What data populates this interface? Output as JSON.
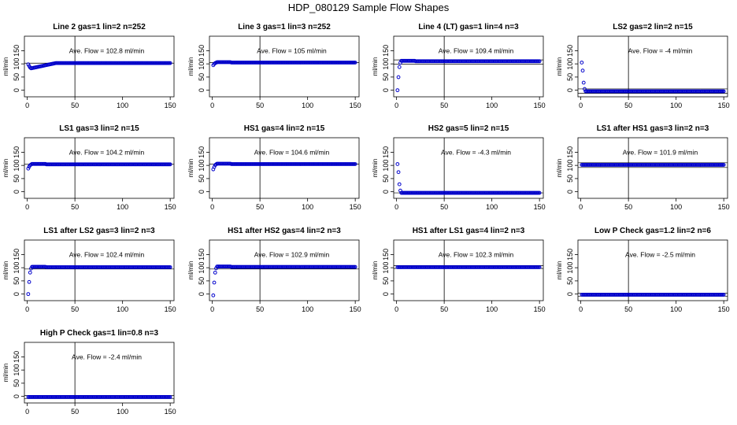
{
  "figure": {
    "title": "HDP_080129  Sample Flow Shapes"
  },
  "chart_data": [
    {
      "type": "scatter",
      "title": "Line 2 gas=1 lin=2 n=252",
      "ylabel": "ml/min",
      "xlabel": "",
      "xlim": [
        -3,
        154
      ],
      "ylim": [
        -25,
        205
      ],
      "xticks": [
        0,
        50,
        100,
        150
      ],
      "yticks": [
        0,
        50,
        100,
        150
      ],
      "annotation": "Ave. Flow =  102.8  ml/min",
      "ave_flow": 102.8,
      "vline_x": 50,
      "hlines": [
        102.8
      ],
      "shape": "dip",
      "start": 98,
      "steady": 103
    },
    {
      "type": "scatter",
      "title": "Line 3 gas=1 lin=3 n=252",
      "ylabel": "ml/min",
      "xlabel": "",
      "xlim": [
        -3,
        154
      ],
      "ylim": [
        -25,
        205
      ],
      "xticks": [
        0,
        50,
        100,
        150
      ],
      "yticks": [
        0,
        50,
        100,
        150
      ],
      "annotation": "Ave. Flow =  105  ml/min",
      "ave_flow": 105,
      "vline_x": 50,
      "hlines": [
        105
      ],
      "shape": "rise",
      "start": 95,
      "steady": 105
    },
    {
      "type": "scatter",
      "title": "Line 4 (LT) gas=1 lin=4 n=3",
      "ylabel": "ml/min",
      "xlabel": "",
      "xlim": [
        -3,
        154
      ],
      "ylim": [
        -25,
        205
      ],
      "xticks": [
        0,
        50,
        100,
        150
      ],
      "yticks": [
        0,
        50,
        100,
        150
      ],
      "annotation": "Ave. Flow =  109.4  ml/min",
      "ave_flow": 109.4,
      "vline_x": 50,
      "hlines": [
        99,
        115
      ],
      "shape": "rise",
      "start": 0,
      "steady": 110
    },
    {
      "type": "scatter",
      "title": "LS2 gas=2 lin=2 n=15",
      "ylabel": "ml/min",
      "xlabel": "",
      "xlim": [
        -3,
        154
      ],
      "ylim": [
        -25,
        205
      ],
      "xticks": [
        0,
        50,
        100,
        150
      ],
      "yticks": [
        0,
        50,
        100,
        150
      ],
      "annotation": "Ave. Flow =  -4  ml/min",
      "ave_flow": -4,
      "vline_x": 50,
      "hlines": [
        5,
        -12
      ],
      "shape": "decay",
      "start": 105,
      "steady": -4
    },
    {
      "type": "scatter",
      "title": "LS1 gas=3 lin=2 n=15",
      "ylabel": "ml/min",
      "xlabel": "",
      "xlim": [
        -3,
        154
      ],
      "ylim": [
        -25,
        205
      ],
      "xticks": [
        0,
        50,
        100,
        150
      ],
      "yticks": [
        0,
        50,
        100,
        150
      ],
      "annotation": "Ave. Flow =  104.2  ml/min",
      "ave_flow": 104.2,
      "vline_x": 50,
      "hlines": [
        104.2
      ],
      "shape": "rise",
      "start": 88,
      "steady": 104
    },
    {
      "type": "scatter",
      "title": "HS1 gas=4 lin=2 n=15",
      "ylabel": "ml/min",
      "xlabel": "",
      "xlim": [
        -3,
        154
      ],
      "ylim": [
        -25,
        205
      ],
      "xticks": [
        0,
        50,
        100,
        150
      ],
      "yticks": [
        0,
        50,
        100,
        150
      ],
      "annotation": "Ave. Flow =  104.6  ml/min",
      "ave_flow": 104.6,
      "vline_x": 50,
      "hlines": [
        104.6
      ],
      "shape": "rise",
      "start": 85,
      "steady": 105
    },
    {
      "type": "scatter",
      "title": "HS2 gas=5 lin=2 n=15",
      "ylabel": "ml/min",
      "xlabel": "",
      "xlim": [
        -3,
        154
      ],
      "ylim": [
        -25,
        205
      ],
      "xticks": [
        0,
        50,
        100,
        150
      ],
      "yticks": [
        0,
        50,
        100,
        150
      ],
      "annotation": "Ave. Flow =  -4.3  ml/min",
      "ave_flow": -4.3,
      "vline_x": 50,
      "hlines": [
        -4.3
      ],
      "shape": "decay",
      "start": 105,
      "steady": -4.3
    },
    {
      "type": "scatter",
      "title": "LS1 after HS1 gas=3 lin=2 n=3",
      "ylabel": "ml/min",
      "xlabel": "",
      "xlim": [
        -3,
        154
      ],
      "ylim": [
        -25,
        205
      ],
      "xticks": [
        0,
        50,
        100,
        150
      ],
      "yticks": [
        0,
        50,
        100,
        150
      ],
      "annotation": "Ave. Flow =  101.9  ml/min",
      "ave_flow": 101.9,
      "vline_x": 50,
      "hlines": [
        110,
        92
      ],
      "shape": "flat",
      "start": 102,
      "steady": 102
    },
    {
      "type": "scatter",
      "title": "LS1 after LS2 gas=3 lin=2 n=3",
      "ylabel": "ml/min",
      "xlabel": "",
      "xlim": [
        -3,
        154
      ],
      "ylim": [
        -25,
        205
      ],
      "xticks": [
        0,
        50,
        100,
        150
      ],
      "yticks": [
        0,
        50,
        100,
        150
      ],
      "annotation": "Ave. Flow =  102.4  ml/min",
      "ave_flow": 102.4,
      "vline_x": 50,
      "hlines": [
        95
      ],
      "shape": "rise",
      "start": 0,
      "steady": 102
    },
    {
      "type": "scatter",
      "title": "HS1 after HS2 gas=4 lin=2 n=3",
      "ylabel": "ml/min",
      "xlabel": "",
      "xlim": [
        -3,
        154
      ],
      "ylim": [
        -25,
        205
      ],
      "xticks": [
        0,
        50,
        100,
        150
      ],
      "yticks": [
        0,
        50,
        100,
        150
      ],
      "annotation": "Ave. Flow =  102.9  ml/min",
      "ave_flow": 102.9,
      "vline_x": 50,
      "hlines": [
        95
      ],
      "shape": "rise",
      "start": -5,
      "steady": 103
    },
    {
      "type": "scatter",
      "title": "HS1 after LS1 gas=4 lin=2 n=3",
      "ylabel": "ml/min",
      "xlabel": "",
      "xlim": [
        -3,
        154
      ],
      "ylim": [
        -25,
        205
      ],
      "xticks": [
        0,
        50,
        100,
        150
      ],
      "yticks": [
        0,
        50,
        100,
        150
      ],
      "annotation": "Ave. Flow =  102.3  ml/min",
      "ave_flow": 102.3,
      "vline_x": 50,
      "hlines": [
        108,
        97
      ],
      "shape": "flat",
      "start": 102,
      "steady": 102
    },
    {
      "type": "scatter",
      "title": "Low P Check gas=1.2 lin=2 n=6",
      "ylabel": "ml/min",
      "xlabel": "",
      "xlim": [
        -3,
        154
      ],
      "ylim": [
        -25,
        205
      ],
      "xticks": [
        0,
        50,
        100,
        150
      ],
      "yticks": [
        0,
        50,
        100,
        150
      ],
      "annotation": "Ave. Flow =  -2.5  ml/min",
      "ave_flow": -2.5,
      "vline_x": 50,
      "hlines": [
        3,
        -8
      ],
      "shape": "flat",
      "start": -2.5,
      "steady": -2.5
    },
    {
      "type": "scatter",
      "title": "High P Check gas=1 lin=0.8 n=3",
      "ylabel": "ml/min",
      "xlabel": "",
      "xlim": [
        -3,
        154
      ],
      "ylim": [
        -25,
        205
      ],
      "xticks": [
        0,
        50,
        100,
        150
      ],
      "yticks": [
        0,
        50,
        100,
        150
      ],
      "annotation": "Ave. Flow =  -2.4  ml/min",
      "ave_flow": -2.4,
      "vline_x": 50,
      "hlines": [
        3,
        -8
      ],
      "shape": "flat",
      "start": -2.4,
      "steady": -2.4
    }
  ],
  "colors": {
    "points": "#0000cc",
    "axis": "#000000",
    "background": "#ffffff"
  }
}
